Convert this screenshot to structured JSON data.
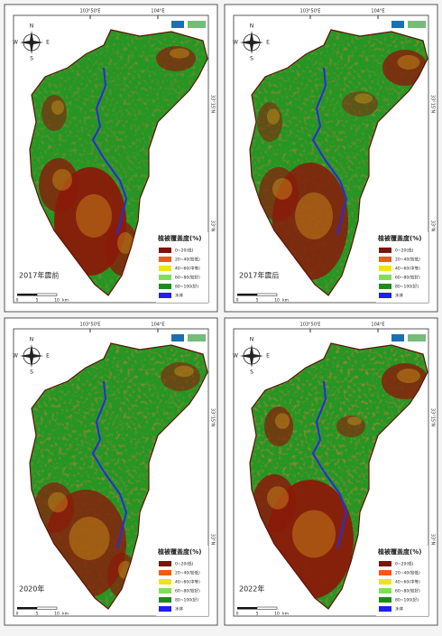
{
  "panels": [
    {
      "label": "2017年震前"
    },
    {
      "label": "2017年震后"
    },
    {
      "label": "2020年"
    },
    {
      "label": "2022年"
    }
  ],
  "grid_labels": {
    "top": [
      "103°50'E",
      "104°E"
    ],
    "right": [
      "33°15'N",
      "33°N"
    ]
  },
  "compass": {
    "north": "N",
    "east": "E",
    "south": "S",
    "west": "W"
  },
  "scale": {
    "ticks": [
      "0",
      "5",
      "10"
    ],
    "unit": "km"
  },
  "legend": {
    "title": "植被覆盖度(%)",
    "items": [
      {
        "label": "0~20(低)",
        "color": "#7a1508"
      },
      {
        "label": "20~40(较低)",
        "color": "#f05a14"
      },
      {
        "label": "40~60(中等)",
        "color": "#f2e21e"
      },
      {
        "label": "60~80(较好)",
        "color": "#7ee05a"
      },
      {
        "label": "80~100(好)",
        "color": "#1e8a1e"
      },
      {
        "label": "水体",
        "color": "#2020f0"
      }
    ]
  }
}
